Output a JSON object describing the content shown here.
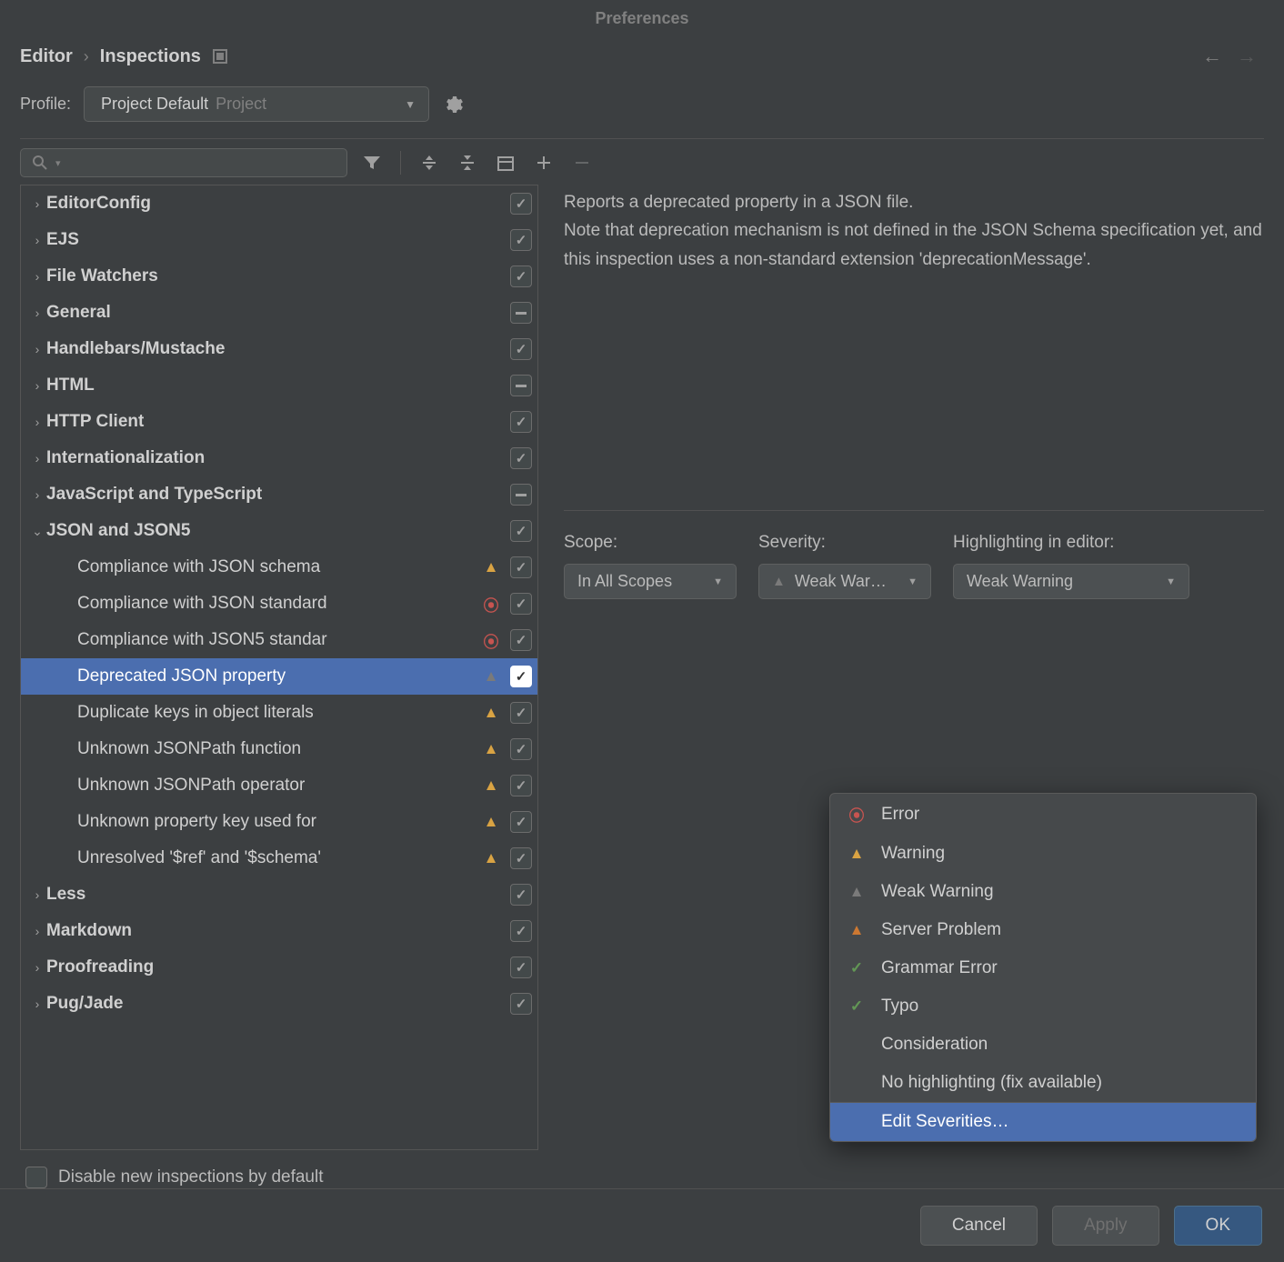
{
  "title": "Preferences",
  "breadcrumb": {
    "root": "Editor",
    "leaf": "Inspections"
  },
  "profile": {
    "label": "Profile:",
    "value": "Project Default",
    "hint": "Project"
  },
  "disable_label": "Disable new inspections by default",
  "description": "Reports a deprecated property in a JSON file.\nNote that deprecation mechanism is not defined in the JSON Schema specification yet, and this inspection uses a non-standard extension 'deprecationMessage'.",
  "scope": {
    "label": "Scope:",
    "value": "In All Scopes"
  },
  "severity": {
    "label": "Severity:",
    "value": "Weak War…"
  },
  "highlighting": {
    "label": "Highlighting in editor:",
    "value": "Weak Warning"
  },
  "tree": [
    {
      "label": "EditorConfig",
      "cb": "checked",
      "kind": "parent",
      "arrow": ">"
    },
    {
      "label": "EJS",
      "cb": "checked",
      "kind": "parent",
      "arrow": ">"
    },
    {
      "label": "File Watchers",
      "cb": "checked",
      "kind": "parent",
      "arrow": ">"
    },
    {
      "label": "General",
      "cb": "partial",
      "kind": "parent",
      "arrow": ">"
    },
    {
      "label": "Handlebars/Mustache",
      "cb": "checked",
      "kind": "parent",
      "arrow": ">"
    },
    {
      "label": "HTML",
      "cb": "partial",
      "kind": "parent",
      "arrow": ">"
    },
    {
      "label": "HTTP Client",
      "cb": "checked",
      "kind": "parent",
      "arrow": ">"
    },
    {
      "label": "Internationalization",
      "cb": "checked",
      "kind": "parent",
      "arrow": ">"
    },
    {
      "label": "JavaScript and TypeScript",
      "cb": "partial",
      "kind": "parent",
      "arrow": ">"
    },
    {
      "label": "JSON and JSON5",
      "cb": "checked",
      "kind": "parent",
      "arrow": "v"
    },
    {
      "label": "Compliance with JSON schema",
      "cb": "checked",
      "kind": "child",
      "warn": "orange"
    },
    {
      "label": "Compliance with JSON standard",
      "cb": "checked",
      "kind": "child",
      "warn": "red"
    },
    {
      "label": "Compliance with JSON5 standar",
      "cb": "checked",
      "kind": "child",
      "warn": "red"
    },
    {
      "label": "Deprecated JSON property",
      "cb": "checked",
      "kind": "child",
      "warn": "gray",
      "selected": true
    },
    {
      "label": "Duplicate keys in object literals",
      "cb": "checked",
      "kind": "child",
      "warn": "orange"
    },
    {
      "label": "Unknown JSONPath function",
      "cb": "checked",
      "kind": "child",
      "warn": "orange"
    },
    {
      "label": "Unknown JSONPath operator",
      "cb": "checked",
      "kind": "child",
      "warn": "orange"
    },
    {
      "label": "Unknown property key used for ",
      "cb": "checked",
      "kind": "child",
      "warn": "orange"
    },
    {
      "label": "Unresolved '$ref' and '$schema'",
      "cb": "checked",
      "kind": "child",
      "warn": "orange"
    },
    {
      "label": "Less",
      "cb": "checked",
      "kind": "parent",
      "arrow": ">"
    },
    {
      "label": "Markdown",
      "cb": "checked",
      "kind": "parent",
      "arrow": ">"
    },
    {
      "label": "Proofreading",
      "cb": "checked",
      "kind": "parent",
      "arrow": ">"
    },
    {
      "label": "Pug/Jade",
      "cb": "checked",
      "kind": "parent",
      "arrow": ">"
    }
  ],
  "popup": [
    {
      "label": "Error",
      "icon": "red-circle"
    },
    {
      "label": "Warning",
      "icon": "orange-tri"
    },
    {
      "label": "Weak Warning",
      "icon": "gray-tri"
    },
    {
      "label": "Server Problem",
      "icon": "dark-orange-tri"
    },
    {
      "label": "Grammar Error",
      "icon": "green-squiggle"
    },
    {
      "label": "Typo",
      "icon": "green-squiggle"
    },
    {
      "label": "Consideration",
      "icon": ""
    },
    {
      "label": "No highlighting (fix available)",
      "icon": ""
    },
    {
      "label": "Edit Severities…",
      "icon": "",
      "selected": true,
      "divider_before": true
    }
  ],
  "buttons": {
    "cancel": "Cancel",
    "apply": "Apply",
    "ok": "OK"
  },
  "colors": {
    "bg": "#3c3f41",
    "sel": "#4b6eaf",
    "text": "#bbbbbb",
    "orange": "#d9a343",
    "red": "#c75450",
    "gray": "#7a7a7a",
    "dark_orange": "#cc7832",
    "green": "#629755"
  }
}
